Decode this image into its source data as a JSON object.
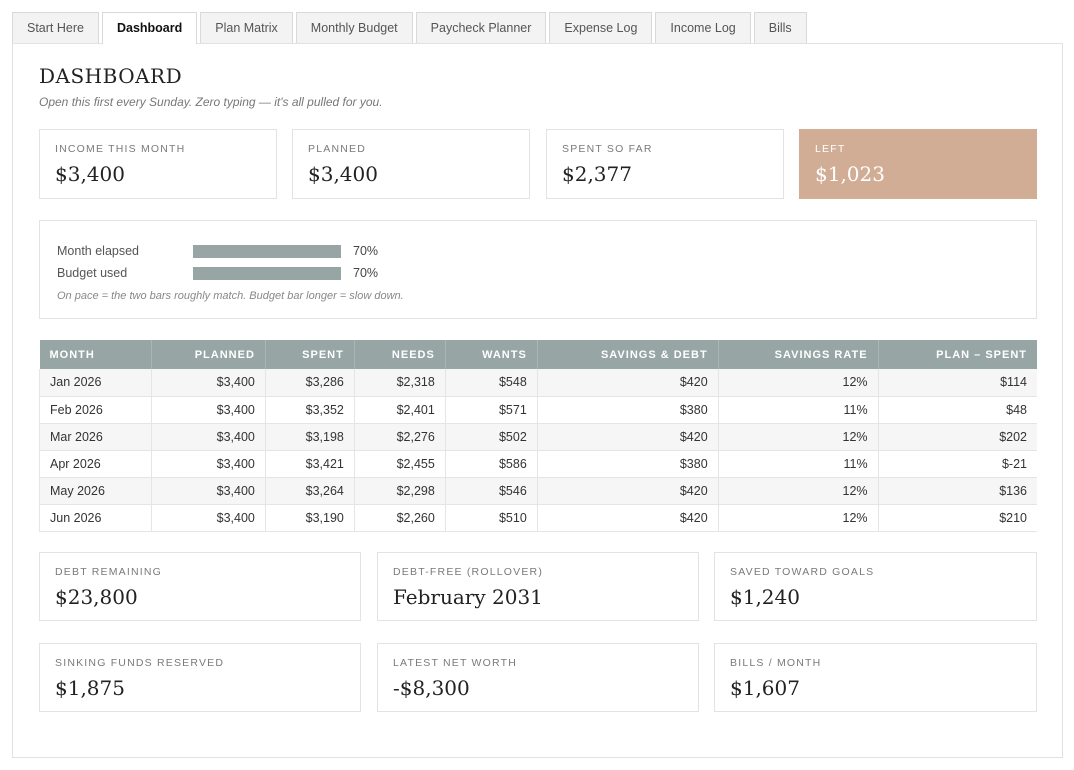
{
  "tabs": [
    "Start Here",
    "Dashboard",
    "Plan Matrix",
    "Monthly Budget",
    "Paycheck Planner",
    "Expense Log",
    "Income Log",
    "Bills"
  ],
  "active_tab": "Dashboard",
  "page": {
    "title": "DASHBOARD",
    "subtitle": "Open this first every Sunday. Zero typing — it's all pulled for you."
  },
  "summary_cards": [
    {
      "label": "INCOME THIS MONTH",
      "value": "$3,400"
    },
    {
      "label": "PLANNED",
      "value": "$3,400"
    },
    {
      "label": "SPENT SO FAR",
      "value": "$2,377"
    },
    {
      "label": "LEFT",
      "value": "$1,023"
    }
  ],
  "accent_color": "#d1ad96",
  "bar_color": "#97a5a5",
  "pace": {
    "rows": [
      {
        "label": "Month elapsed",
        "percent_text": "70%",
        "fraction": 0.7
      },
      {
        "label": "Budget used",
        "percent_text": "70%",
        "fraction": 0.7
      }
    ],
    "note": "On pace = the two bars roughly match. Budget bar longer = slow down."
  },
  "month_table": {
    "headers": [
      "MONTH",
      "PLANNED",
      "SPENT",
      "NEEDS",
      "WANTS",
      "SAVINGS & DEBT",
      "SAVINGS RATE",
      "PLAN – SPENT"
    ],
    "rows": [
      [
        "Jan 2026",
        "$3,400",
        "$3,286",
        "$2,318",
        "$548",
        "$420",
        "12%",
        "$114"
      ],
      [
        "Feb 2026",
        "$3,400",
        "$3,352",
        "$2,401",
        "$571",
        "$380",
        "11%",
        "$48"
      ],
      [
        "Mar 2026",
        "$3,400",
        "$3,198",
        "$2,276",
        "$502",
        "$420",
        "12%",
        "$202"
      ],
      [
        "Apr 2026",
        "$3,400",
        "$3,421",
        "$2,455",
        "$586",
        "$380",
        "11%",
        "$-21"
      ],
      [
        "May 2026",
        "$3,400",
        "$3,264",
        "$2,298",
        "$546",
        "$420",
        "12%",
        "$136"
      ],
      [
        "Jun 2026",
        "$3,400",
        "$3,190",
        "$2,260",
        "$510",
        "$420",
        "12%",
        "$210"
      ]
    ]
  },
  "bottom_cards": [
    {
      "label": "DEBT REMAINING",
      "value": "$23,800"
    },
    {
      "label": "DEBT-FREE (ROLLOVER)",
      "value": "February 2031"
    },
    {
      "label": "SAVED TOWARD GOALS",
      "value": "$1,240"
    },
    {
      "label": "SINKING FUNDS RESERVED",
      "value": "$1,875"
    },
    {
      "label": "LATEST NET WORTH",
      "value": "-$8,300"
    },
    {
      "label": "BILLS / MONTH",
      "value": "$1,607"
    }
  ]
}
